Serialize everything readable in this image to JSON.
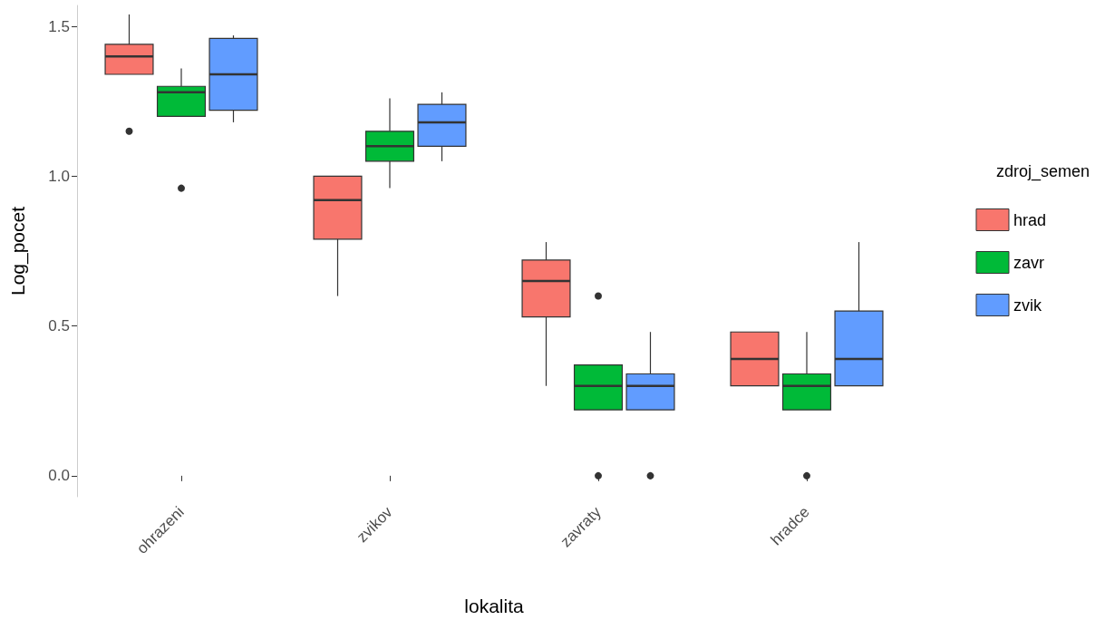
{
  "chart_data": {
    "type": "box",
    "xlabel": "lokalita",
    "ylabel": "Log_pocet",
    "legend_title": "zdroj_semen",
    "legend": "right",
    "grid": false,
    "categories": [
      "ohrazeni",
      "zvikov",
      "zavraty",
      "hradce"
    ],
    "ylim": [
      -0.07,
      1.57
    ],
    "yticks": [
      {
        "value": 0,
        "label": "0.0"
      },
      {
        "value": 0.5,
        "label": "0.5"
      },
      {
        "value": 1,
        "label": "1.0"
      },
      {
        "value": 1.5,
        "label": "1.5"
      }
    ],
    "series": [
      {
        "name": "hrad",
        "color": "#f8766d",
        "boxes": [
          {
            "low": 1.34,
            "q1": 1.34,
            "median": 1.4,
            "q3": 1.44,
            "high": 1.54,
            "outliers": [
              1.15
            ]
          },
          {
            "low": 0.6,
            "q1": 0.79,
            "median": 0.92,
            "q3": 1.0,
            "high": 1.0
          },
          {
            "low": 0.3,
            "q1": 0.53,
            "median": 0.65,
            "q3": 0.72,
            "high": 0.78
          },
          {
            "low": 0.3,
            "q1": 0.3,
            "median": 0.39,
            "q3": 0.48,
            "high": 0.48
          }
        ]
      },
      {
        "name": "zavr",
        "color": "#00ba38",
        "boxes": [
          {
            "low": 1.2,
            "q1": 1.2,
            "median": 1.28,
            "q3": 1.3,
            "high": 1.36,
            "outliers": [
              0.96
            ]
          },
          {
            "low": 0.96,
            "q1": 1.05,
            "median": 1.1,
            "q3": 1.15,
            "high": 1.26
          },
          {
            "low": 0.22,
            "q1": 0.22,
            "median": 0.3,
            "q3": 0.37,
            "high": 0.37,
            "outliers": [
              0.6,
              0
            ]
          },
          {
            "low": 0.22,
            "q1": 0.22,
            "median": 0.3,
            "q3": 0.34,
            "high": 0.48,
            "outliers": [
              0
            ]
          }
        ]
      },
      {
        "name": "zvik",
        "color": "#619cff",
        "boxes": [
          {
            "low": 1.18,
            "q1": 1.22,
            "median": 1.34,
            "q3": 1.46,
            "high": 1.47
          },
          {
            "low": 1.05,
            "q1": 1.1,
            "median": 1.18,
            "q3": 1.24,
            "high": 1.28
          },
          {
            "low": 0.22,
            "q1": 0.22,
            "median": 0.3,
            "q3": 0.34,
            "high": 0.48,
            "outliers": [
              0
            ]
          },
          {
            "low": 0.3,
            "q1": 0.3,
            "median": 0.39,
            "q3": 0.55,
            "high": 0.78
          }
        ]
      }
    ]
  }
}
